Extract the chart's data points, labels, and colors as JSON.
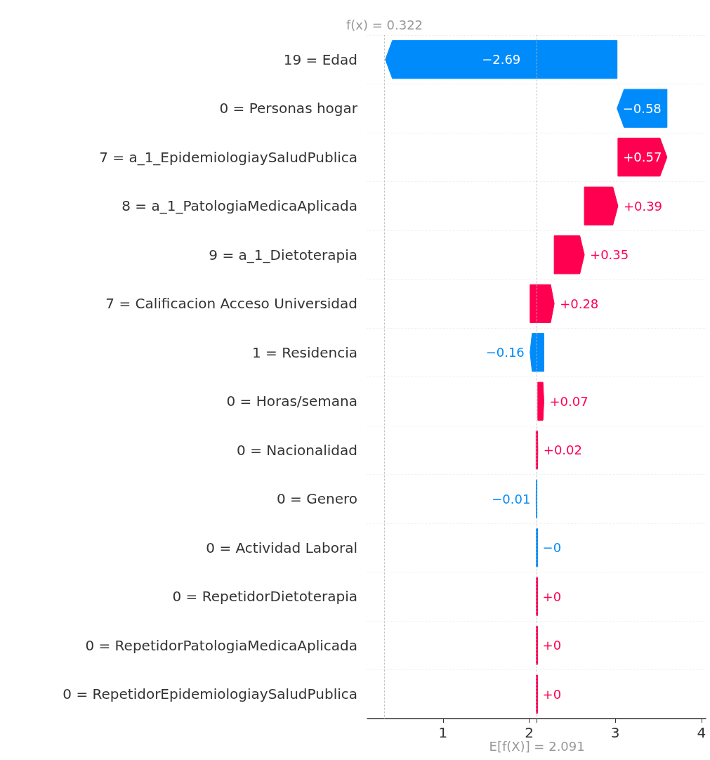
{
  "chart_data": {
    "type": "bar",
    "orientation": "horizontal",
    "categories": [
      "19 = Edad",
      "0 = Personas hogar",
      "7 = a_1_EpidemiologiaySaludPublica",
      "8 = a_1_PatologiaMedicaAplicada",
      "9 = a_1_Dietoterapia",
      "7 = Calificacion Acceso Universidad",
      "1 = Residencia",
      "0 = Horas/semana",
      "0 = Nacionalidad",
      "0 = Genero",
      "0 = Actividad Laboral",
      "0 = RepetidorDietoterapia",
      "0 = RepetidorPatologiaMedicaAplicada",
      "0 = RepetidorEpidemiologiaySaludPublica"
    ],
    "values": [
      -2.69,
      -0.58,
      0.57,
      0.39,
      0.35,
      0.28,
      -0.16,
      0.07,
      0.02,
      -0.01,
      0,
      0,
      0,
      0
    ],
    "base": [
      3.02,
      3.6,
      3.03,
      2.64,
      2.29,
      2.01,
      2.17,
      2.1,
      2.08,
      2.09,
      2.09,
      2.09,
      2.09,
      2.09
    ],
    "colors": [
      "#008bfb",
      "#008bfb",
      "#ff0051",
      "#ff0051",
      "#ff0051",
      "#ff0051",
      "#008bfb",
      "#ff0051",
      "#ff0051",
      "#008bfb",
      "#008bfb",
      "#ff0051",
      "#ff0051",
      "#ff0051"
    ],
    "value_labels": [
      "−2.69",
      "−0.58",
      "+0.57",
      "+0.39",
      "+0.35",
      "+0.28",
      "−0.16",
      "+0.07",
      "+0.02",
      "−0.01",
      "−0",
      "+0",
      "+0",
      "+0"
    ],
    "xlim": [
      0.12,
      4.05
    ],
    "xticks": [
      1,
      2,
      {
        "value": 2.091,
        "label": null
      },
      3,
      4
    ],
    "ref_lines": [
      {
        "axis": "x",
        "value": 0.322,
        "label": "f(x) = 0.322",
        "color": "#bbbbbb",
        "line_style": "dotted"
      },
      {
        "axis": "x",
        "value": 2.091,
        "label": "E[f(X)] = 2.091",
        "color": "#bbbbbb",
        "line_style": "dotted"
      }
    ],
    "grid": "y"
  }
}
